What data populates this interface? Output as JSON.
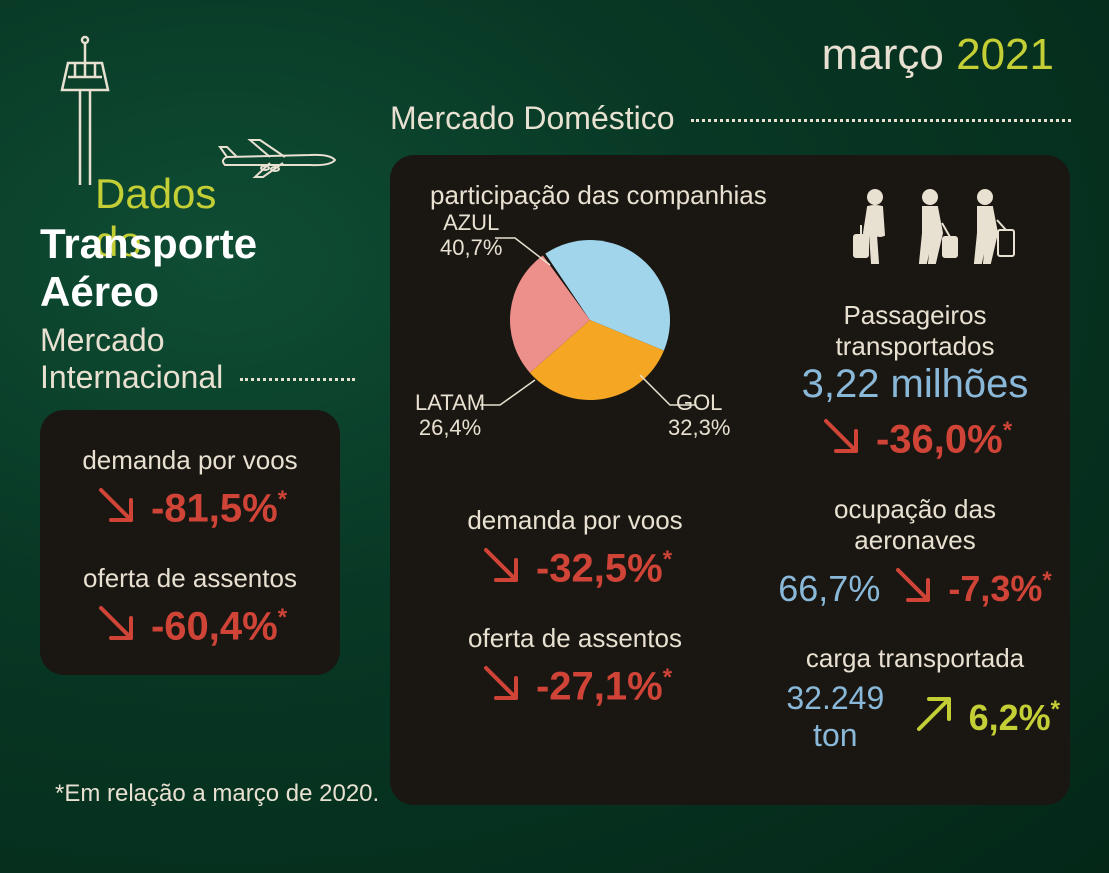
{
  "header": {
    "month": "março",
    "year": "2021"
  },
  "title": {
    "line1": "Dados do",
    "line2": "Transporte Aéreo"
  },
  "international": {
    "heading": "Mercado",
    "heading2": "Internacional",
    "demand_label": "demanda por voos",
    "demand_value": "-81,5%",
    "supply_label": "oferta de assentos",
    "supply_value": "-60,4%"
  },
  "domestic": {
    "heading": "Mercado Doméstico",
    "pie_title": "participação das companhias",
    "pie": {
      "type": "pie",
      "slices": [
        {
          "label": "AZUL",
          "value": "40,7%",
          "pct": 40.7,
          "color": "#a0d5ec"
        },
        {
          "label": "GOL",
          "value": "32,3%",
          "pct": 32.3,
          "color": "#f5a623"
        },
        {
          "label": "LATAM",
          "value": "26,4%",
          "pct": 26.4,
          "color": "#ed8f8a"
        }
      ],
      "radius": 80,
      "start_angle": -124
    },
    "passengers_label": "Passageiros transportados",
    "passengers_value": "3,22 milhões",
    "passengers_change": "-36,0%",
    "demand_label": "demanda por voos",
    "demand_value": "-32,5%",
    "supply_label": "oferta de assentos",
    "supply_value": "-27,1%",
    "occupancy_label": "ocupação das aeronaves",
    "occupancy_value": "66,7%",
    "occupancy_change": "-7,3%",
    "cargo_label": "carga transportada",
    "cargo_value": "32.249 ton",
    "cargo_change": "6,2%"
  },
  "footnote": "*Em relação a março de 2020.",
  "colors": {
    "accent_yellow": "#c4ce35",
    "down_red": "#d04438",
    "value_blue": "#8ab8d8",
    "cream": "#e8e0d0",
    "panel_bg": "#1a1712"
  }
}
